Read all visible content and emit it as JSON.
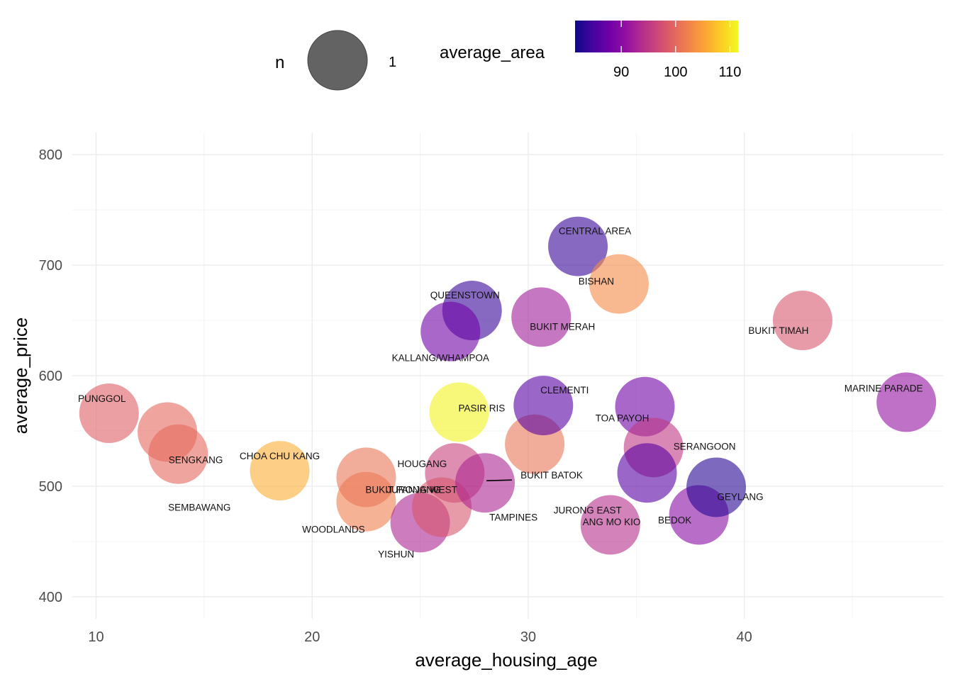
{
  "chart_data": {
    "type": "scatter",
    "title": "",
    "xlabel": "average_housing_age",
    "ylabel": "average_price",
    "xlim": [
      8.9,
      49.2
    ],
    "ylim": [
      380,
      820
    ],
    "x_ticks": [
      10,
      20,
      30,
      40
    ],
    "y_ticks": [
      400,
      500,
      600,
      700,
      800
    ],
    "x_tick_labels": [
      "10",
      "20",
      "30",
      "40"
    ],
    "y_tick_labels": [
      "400",
      "500",
      "600",
      "700",
      "800"
    ],
    "grid": true,
    "size_legend": {
      "title": "n",
      "label": "1",
      "value": 1
    },
    "color_legend": {
      "title": "average_area",
      "scale": "plasma",
      "range": [
        81.5,
        111.5
      ],
      "ticks": [
        90,
        100,
        110
      ],
      "tick_labels": [
        "90",
        "100",
        "110"
      ]
    },
    "points": [
      {
        "name": "PUNGGOL",
        "x": 10.6,
        "y": 566,
        "area": 99
      },
      {
        "name": "SENGKANG",
        "x": 13.3,
        "y": 549,
        "area": 100
      },
      {
        "name": "SEMBAWANG",
        "x": 13.8,
        "y": 529,
        "area": 100
      },
      {
        "name": "CHOA CHU KANG",
        "x": 18.5,
        "y": 514,
        "area": 106
      },
      {
        "name": "WOODLANDS",
        "x": 22.5,
        "y": 486,
        "area": 102
      },
      {
        "name": "BUKIT PANJANG",
        "x": 22.5,
        "y": 508,
        "area": 101
      },
      {
        "name": "YISHUN",
        "x": 25.0,
        "y": 467,
        "area": 93
      },
      {
        "name": "HOUGANG",
        "x": 26.6,
        "y": 512,
        "area": 96
      },
      {
        "name": "JURONG WEST",
        "x": 26.0,
        "y": 481,
        "area": 98
      },
      {
        "name": "PASIR RIS",
        "x": 26.8,
        "y": 567,
        "area": 111
      },
      {
        "name": "TAMPINES",
        "x": 30.3,
        "y": 538,
        "area": 101
      },
      {
        "name": "BUKIT BATOK",
        "x": 28.0,
        "y": 503,
        "area": 93
      },
      {
        "name": "QUEENSTOWN",
        "x": 27.4,
        "y": 659,
        "area": 84
      },
      {
        "name": "KALLANG/WHAMPOA",
        "x": 26.4,
        "y": 640,
        "area": 88
      },
      {
        "name": "BUKIT MERAH",
        "x": 30.6,
        "y": 653,
        "area": 92
      },
      {
        "name": "CLEMENTI",
        "x": 30.7,
        "y": 573,
        "area": 86
      },
      {
        "name": "CENTRAL AREA",
        "x": 32.3,
        "y": 717,
        "area": 84
      },
      {
        "name": "BISHAN",
        "x": 34.2,
        "y": 683,
        "area": 103
      },
      {
        "name": "TOA PAYOH",
        "x": 35.4,
        "y": 572,
        "area": 88
      },
      {
        "name": "SERANGOON",
        "x": 35.8,
        "y": 535,
        "area": 95
      },
      {
        "name": "ANG MO KIO",
        "x": 35.5,
        "y": 512,
        "area": 86
      },
      {
        "name": "JURONG EAST",
        "x": 33.8,
        "y": 465,
        "area": 94
      },
      {
        "name": "BEDOK",
        "x": 37.9,
        "y": 474,
        "area": 90
      },
      {
        "name": "GEYLANG",
        "x": 38.7,
        "y": 499,
        "area": 83
      },
      {
        "name": "BUKIT TIMAH",
        "x": 42.7,
        "y": 650,
        "area": 98
      },
      {
        "name": "MARINE PARADE",
        "x": 47.5,
        "y": 576,
        "area": 91
      }
    ]
  }
}
